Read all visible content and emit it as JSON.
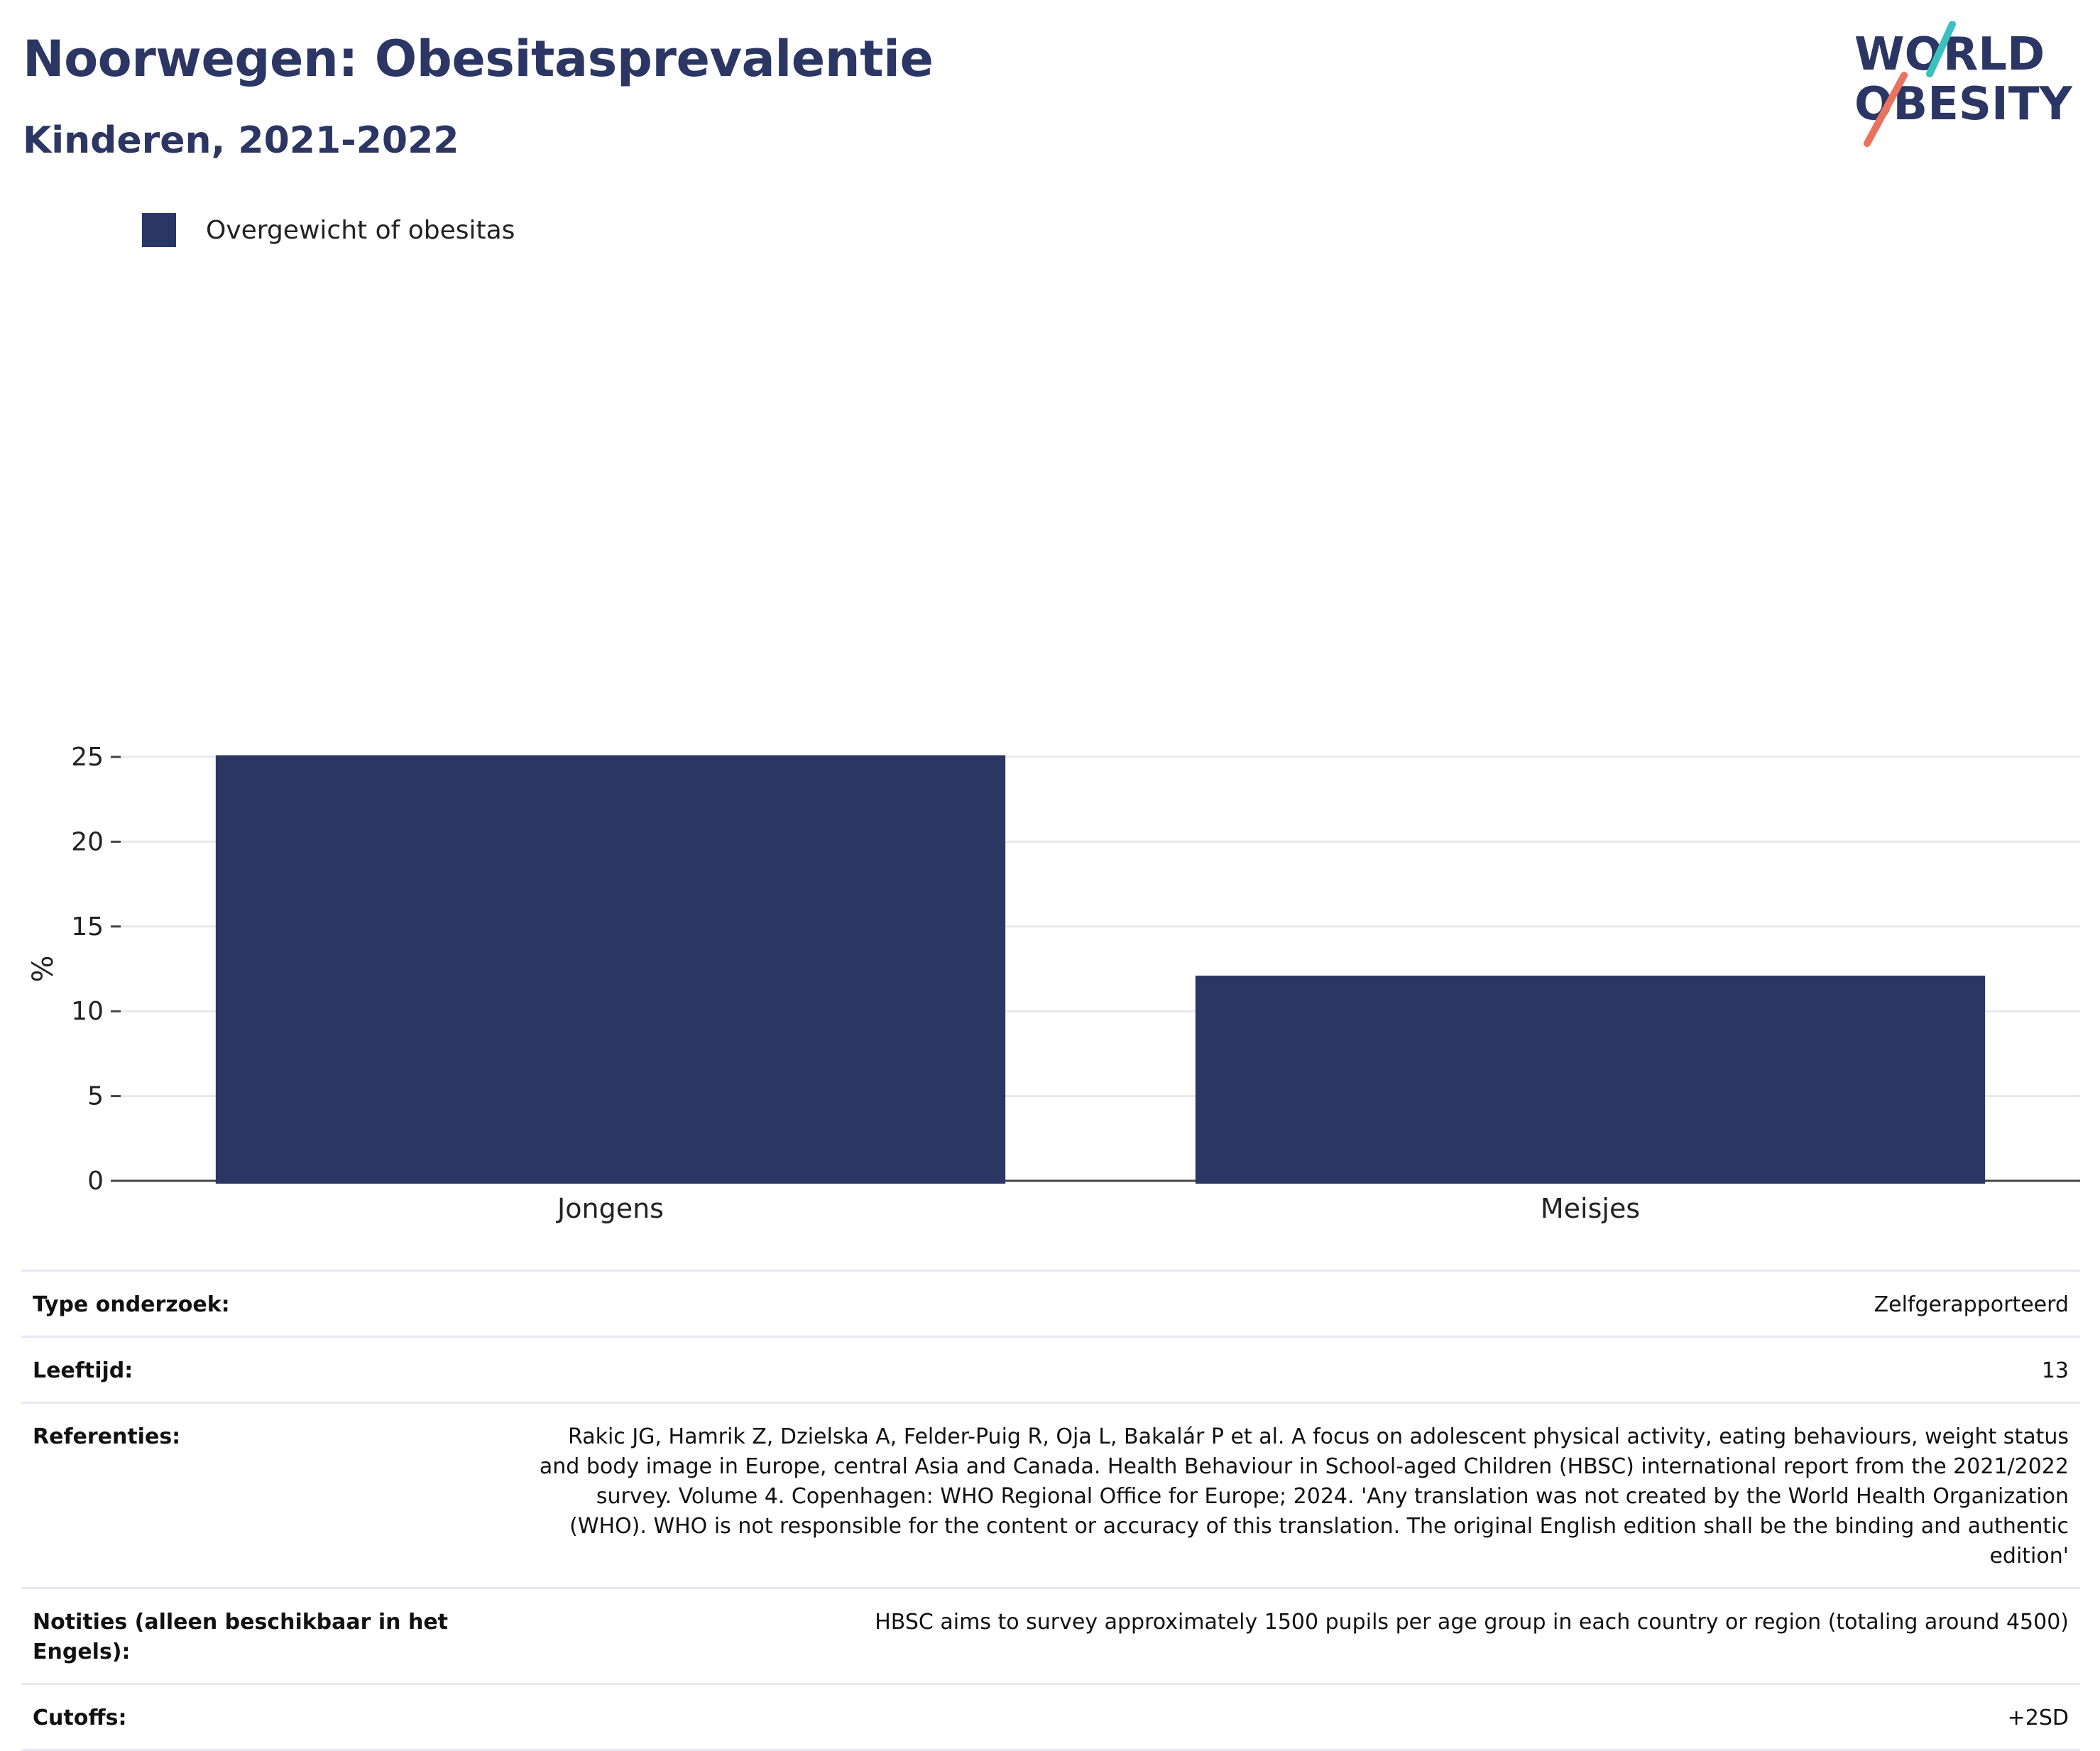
{
  "title": "Noorwegen: Obesitasprevalentie",
  "subtitle": "Kinderen, 2021-2022",
  "logo": {
    "line1": "WORLD",
    "line2": "OBESITY",
    "accent_teal": "#3bbfbf",
    "accent_coral": "#e8735f"
  },
  "colors": {
    "primary": "#2b3664",
    "grid": "#e8e8ee",
    "axis": "#444444"
  },
  "chart_data": {
    "type": "bar",
    "categories": [
      "Jongens",
      "Meisjes"
    ],
    "series": [
      {
        "name": "Overgewicht of obesitas",
        "values": [
          25.1,
          12.1
        ]
      }
    ],
    "ylabel": "%",
    "ylim": [
      0,
      25
    ],
    "yticks": [
      0,
      5,
      10,
      15,
      20,
      25
    ],
    "grid": true,
    "legend": "top-left"
  },
  "info": [
    {
      "key": "Type onderzoek:",
      "value": "Zelfgerapporteerd"
    },
    {
      "key": "Leeftijd:",
      "value": "13"
    },
    {
      "key": "Referenties:",
      "value": "Rakic JG, Hamrik Z, Dzielska A, Felder-Puig R, Oja L, Bakalár P et al. A focus on adolescent physical activity, eating behaviours, weight status and body image in Europe, central Asia and Canada. Health Behaviour in School-aged Children (HBSC) international report from the 2021/2022 survey. Volume 4. Copenhagen: WHO Regional Office for Europe; 2024. 'Any translation was not created by the World Health Organization (WHO). WHO is not responsible for the content or accuracy of this translation. The original English edition shall be the binding and authentic edition'"
    },
    {
      "key": "Notities (alleen beschikbaar in het Engels):",
      "value": "HBSC aims to survey approximately 1500 pupils per age group in each country or region (totaling around 4500)"
    },
    {
      "key": "Cutoffs:",
      "value": "+2SD"
    }
  ]
}
